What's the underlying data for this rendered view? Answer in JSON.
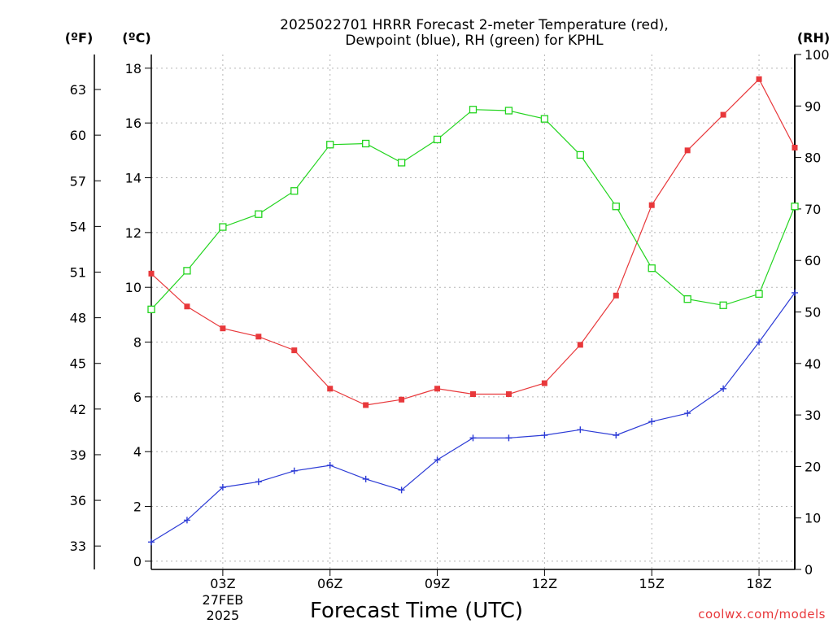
{
  "chart_data": {
    "type": "line",
    "title_lines": [
      "2025022701 HRRR Forecast 2-meter Temperature (red),",
      "Dewpoint (blue), RH (green) for KPHL"
    ],
    "xlabel": "Forecast Time (UTC)",
    "unit_labels": {
      "fahrenheit": "(ºF)",
      "celsius": "(ºC)",
      "rh": "(RH)"
    },
    "x": [
      "01Z",
      "02Z",
      "03Z",
      "04Z",
      "05Z",
      "06Z",
      "07Z",
      "08Z",
      "09Z",
      "10Z",
      "11Z",
      "12Z",
      "13Z",
      "14Z",
      "15Z",
      "16Z",
      "17Z",
      "18Z",
      "19Z"
    ],
    "x_ticks": [
      {
        "label": "03Z",
        "hour": 3,
        "date_lines": [
          "27FEB",
          "2025"
        ]
      },
      {
        "label": "06Z",
        "hour": 6,
        "date_lines": []
      },
      {
        "label": "09Z",
        "hour": 9,
        "date_lines": []
      },
      {
        "label": "12Z",
        "hour": 12,
        "date_lines": []
      },
      {
        "label": "15Z",
        "hour": 15,
        "date_lines": []
      },
      {
        "label": "18Z",
        "hour": 18,
        "date_lines": []
      }
    ],
    "xlim": [
      1,
      19
    ],
    "y_left_c": {
      "ylim": [
        -0.3,
        18.5
      ],
      "ticks": [
        "0",
        "2",
        "4",
        "6",
        "8",
        "10",
        "12",
        "14",
        "16",
        "18"
      ]
    },
    "y_left_f": {
      "ticks": [
        "33",
        "36",
        "39",
        "42",
        "45",
        "48",
        "51",
        "54",
        "57",
        "60",
        "63"
      ]
    },
    "y_right_rh": {
      "ylim": [
        0,
        100
      ],
      "ticks": [
        "0",
        "10",
        "20",
        "30",
        "40",
        "50",
        "60",
        "70",
        "80",
        "90",
        "100"
      ]
    },
    "grid": true,
    "series": [
      {
        "key": "temperature",
        "axis": "celsius",
        "color": "#e8383b",
        "marker": "filled-square",
        "values": [
          10.5,
          9.3,
          8.5,
          8.2,
          7.7,
          6.3,
          5.7,
          5.9,
          6.3,
          6.1,
          6.1,
          6.5,
          7.9,
          9.7,
          13.0,
          15.0,
          16.3,
          17.6,
          15.1
        ]
      },
      {
        "key": "dewpoint",
        "axis": "celsius",
        "color": "#2c3bd6",
        "marker": "plus",
        "values": [
          0.7,
          1.5,
          2.7,
          2.9,
          3.3,
          3.5,
          3.0,
          2.6,
          3.7,
          4.5,
          4.5,
          4.6,
          4.8,
          4.6,
          5.1,
          5.4,
          6.3,
          8.0,
          9.8
        ]
      },
      {
        "key": "rh",
        "axis": "rh",
        "color": "#22d41e",
        "marker": "open-square",
        "values": [
          50.5,
          58.0,
          66.5,
          69.0,
          73.5,
          82.5,
          82.7,
          79.0,
          83.5,
          89.3,
          89.1,
          87.5,
          80.5,
          70.5,
          58.5,
          52.5,
          51.3,
          53.5,
          70.5
        ]
      }
    ],
    "credit": "coolwx.com/models"
  }
}
